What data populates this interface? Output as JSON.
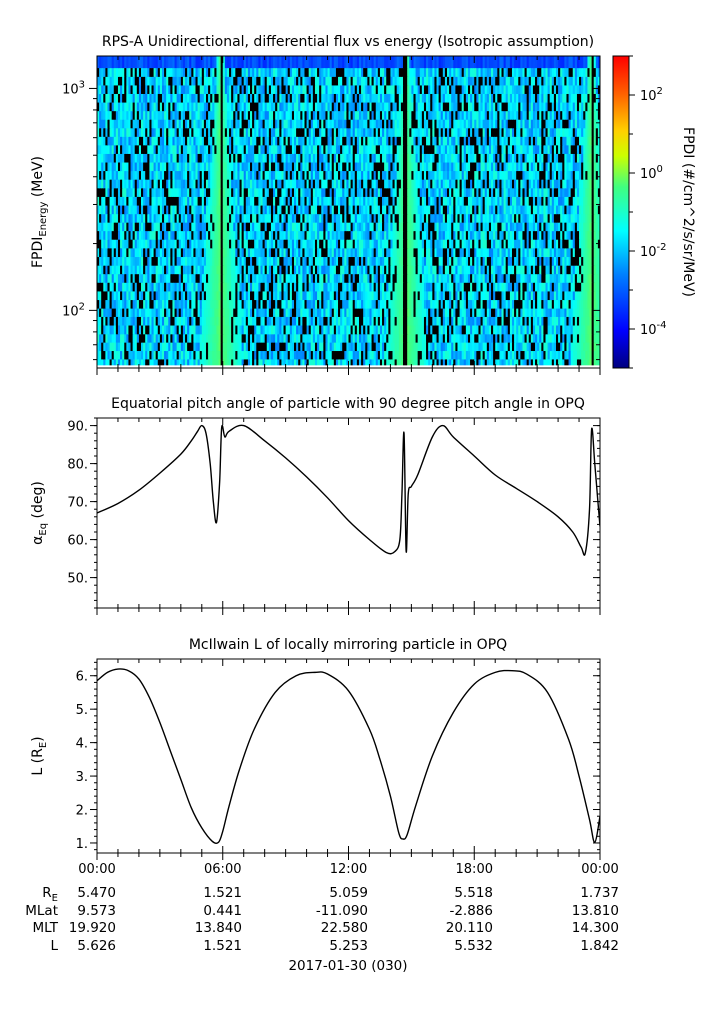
{
  "panels": [
    {
      "title": "RPS-A Unidirectional, differential flux vs energy (Isotropic assumption)",
      "ylabel_main": "FPDI",
      "ylabel_sub": "Energy",
      "ylabel_unit": " (MeV)",
      "y_scale": "log",
      "ylim": [
        55,
        1400
      ],
      "yticks": [
        {
          "value": 100,
          "base": "10",
          "exp": "2"
        },
        {
          "value": 1000,
          "base": "10",
          "exp": "3"
        }
      ],
      "colorbar": {
        "label": "FPDI (#/cm^2/s/sr/MeV)",
        "scale": "log",
        "range_exp": [
          -5,
          3
        ],
        "colors": [
          "#00007f",
          "#0000ff",
          "#0080ff",
          "#00ffff",
          "#80ff80",
          "#ffff00",
          "#ff8000",
          "#ff0000"
        ],
        "ticks": [
          {
            "value_exp": -4,
            "base": "10",
            "exp": "-4"
          },
          {
            "value_exp": -2,
            "base": "10",
            "exp": "-2"
          },
          {
            "value_exp": 0,
            "base": "10",
            "exp": "0"
          },
          {
            "value_exp": 2,
            "base": "10",
            "exp": "2"
          }
        ]
      }
    },
    {
      "title": "Equatorial pitch angle of particle with 90 degree pitch angle in OPQ",
      "ylabel_main": "α",
      "ylabel_sub": "Eq",
      "ylabel_unit": " (deg)",
      "ylim": [
        42,
        92
      ],
      "yticks": [
        50,
        60,
        70,
        80,
        90
      ]
    },
    {
      "title": "McIlwain L of locally mirroring particle in OPQ",
      "ylabel_main": "L (R",
      "ylabel_sub": "E",
      "ylabel_unit": ")",
      "ylim": [
        0.7,
        6.5
      ],
      "yticks": [
        1,
        2,
        3,
        4,
        5,
        6
      ]
    }
  ],
  "x_axis": {
    "range_hours": [
      0,
      24
    ],
    "ticks": [
      "00:00",
      "06:00",
      "12:00",
      "18:00",
      "00:00"
    ],
    "date_label": "2017-01-30 (030)"
  },
  "ephemeris": {
    "rows": [
      {
        "label": "RE",
        "label_main": "R",
        "label_sub": "E",
        "values": [
          "5.470",
          "1.521",
          "5.059",
          "5.518",
          "1.737"
        ]
      },
      {
        "label": "MLat",
        "label_main": "MLat",
        "label_sub": "",
        "values": [
          "9.573",
          "0.441",
          "-11.090",
          "-2.886",
          "13.810"
        ]
      },
      {
        "label": "MLT",
        "label_main": "MLT",
        "label_sub": "",
        "values": [
          "19.920",
          "13.840",
          "22.580",
          "20.110",
          "14.300"
        ]
      },
      {
        "label": "L",
        "label_main": "L",
        "label_sub": "",
        "values": [
          "5.626",
          "1.521",
          "5.253",
          "5.532",
          "1.842"
        ]
      }
    ]
  },
  "chart_data": [
    {
      "type": "heatmap",
      "title": "RPS-A Unidirectional, differential flux vs energy (Isotropic assumption)",
      "xlabel": "",
      "ylabel": "FPDI Energy (MeV)",
      "x_range_hours": [
        0,
        24
      ],
      "y_range_mev": [
        55,
        1400
      ],
      "y_scale": "log",
      "z_label": "FPDI (#/cm^2/s/sr/MeV)",
      "z_range_exp": [
        -5,
        3
      ],
      "energy_bins_mev": [
        58,
        63,
        69,
        75,
        82,
        90,
        98,
        107,
        117,
        128,
        140,
        153,
        167,
        183,
        200,
        219,
        239,
        261,
        285,
        312,
        341,
        373,
        408,
        446,
        487,
        533,
        582,
        636,
        695,
        760,
        830,
        908,
        992,
        1084,
        1185,
        1300
      ],
      "background_log_flux": -1.8,
      "belt_passes": [
        {
          "center_hour": 5.9,
          "peak_log_flux": -0.2,
          "gap_hour": 5.95
        },
        {
          "center_hour": 14.75,
          "peak_log_flux": -0.2,
          "gap_hour": 14.7
        },
        {
          "center_hour": 23.6,
          "peak_log_flux": -0.2,
          "gap_hour": 23.65
        }
      ]
    },
    {
      "type": "line",
      "title": "Equatorial pitch angle of particle with 90 degree pitch angle in OPQ",
      "xlabel": "",
      "ylabel": "αEq (deg)",
      "ylim": [
        42,
        92
      ],
      "x_hours": [
        0,
        1,
        2,
        3,
        4,
        4.5,
        4.8,
        5.0,
        5.2,
        5.4,
        5.55,
        5.7,
        5.85,
        5.95,
        6.1,
        6.3,
        7.0,
        8.0,
        9.0,
        10.0,
        11.0,
        12.0,
        13.0,
        13.8,
        14.2,
        14.45,
        14.55,
        14.65,
        14.75,
        14.85,
        15.0,
        15.3,
        16.0,
        16.5,
        17.0,
        18.0,
        19.0,
        20.0,
        21.0,
        22.0,
        22.7,
        23.1,
        23.3,
        23.5,
        23.6,
        23.75,
        23.9,
        24.0
      ],
      "values": [
        67,
        69.5,
        73,
        77.5,
        82.5,
        86,
        88.5,
        90,
        88,
        80,
        70,
        64.5,
        75,
        89.5,
        87,
        88.5,
        90,
        86,
        81.5,
        76.5,
        71,
        65,
        60,
        56.6,
        56.8,
        60,
        72,
        88,
        57,
        72,
        74,
        77,
        87,
        90,
        87,
        82,
        77,
        73.5,
        70,
        66,
        62,
        58,
        56.5,
        68,
        89,
        80,
        70,
        63.5
      ]
    },
    {
      "type": "line",
      "title": "McIlwain L of locally mirroring particle in OPQ",
      "xlabel": "",
      "ylabel": "L (RE)",
      "ylim": [
        0.7,
        6.5
      ],
      "x_hours": [
        0,
        0.5,
        1.0,
        1.5,
        2.0,
        2.5,
        3.0,
        3.5,
        4.0,
        4.5,
        5.0,
        5.5,
        5.8,
        6.0,
        6.3,
        6.8,
        7.5,
        8.5,
        9.5,
        10.4,
        11.0,
        12.0,
        13.0,
        13.5,
        14.0,
        14.4,
        14.6,
        14.8,
        15.2,
        16.0,
        17.0,
        18.0,
        19.0,
        19.8,
        20.5,
        21.5,
        22.5,
        23.0,
        23.5,
        23.75,
        24.0
      ],
      "values": [
        5.85,
        6.1,
        6.2,
        6.15,
        5.9,
        5.35,
        4.6,
        3.75,
        2.9,
        2.05,
        1.45,
        1.05,
        1.02,
        1.35,
        2.1,
        3.2,
        4.4,
        5.5,
        6.0,
        6.1,
        6.05,
        5.55,
        4.4,
        3.5,
        2.4,
        1.3,
        1.12,
        1.25,
        2.1,
        3.6,
        4.9,
        5.75,
        6.1,
        6.15,
        6.05,
        5.5,
        4.1,
        3.0,
        1.7,
        1.02,
        1.8
      ]
    }
  ]
}
